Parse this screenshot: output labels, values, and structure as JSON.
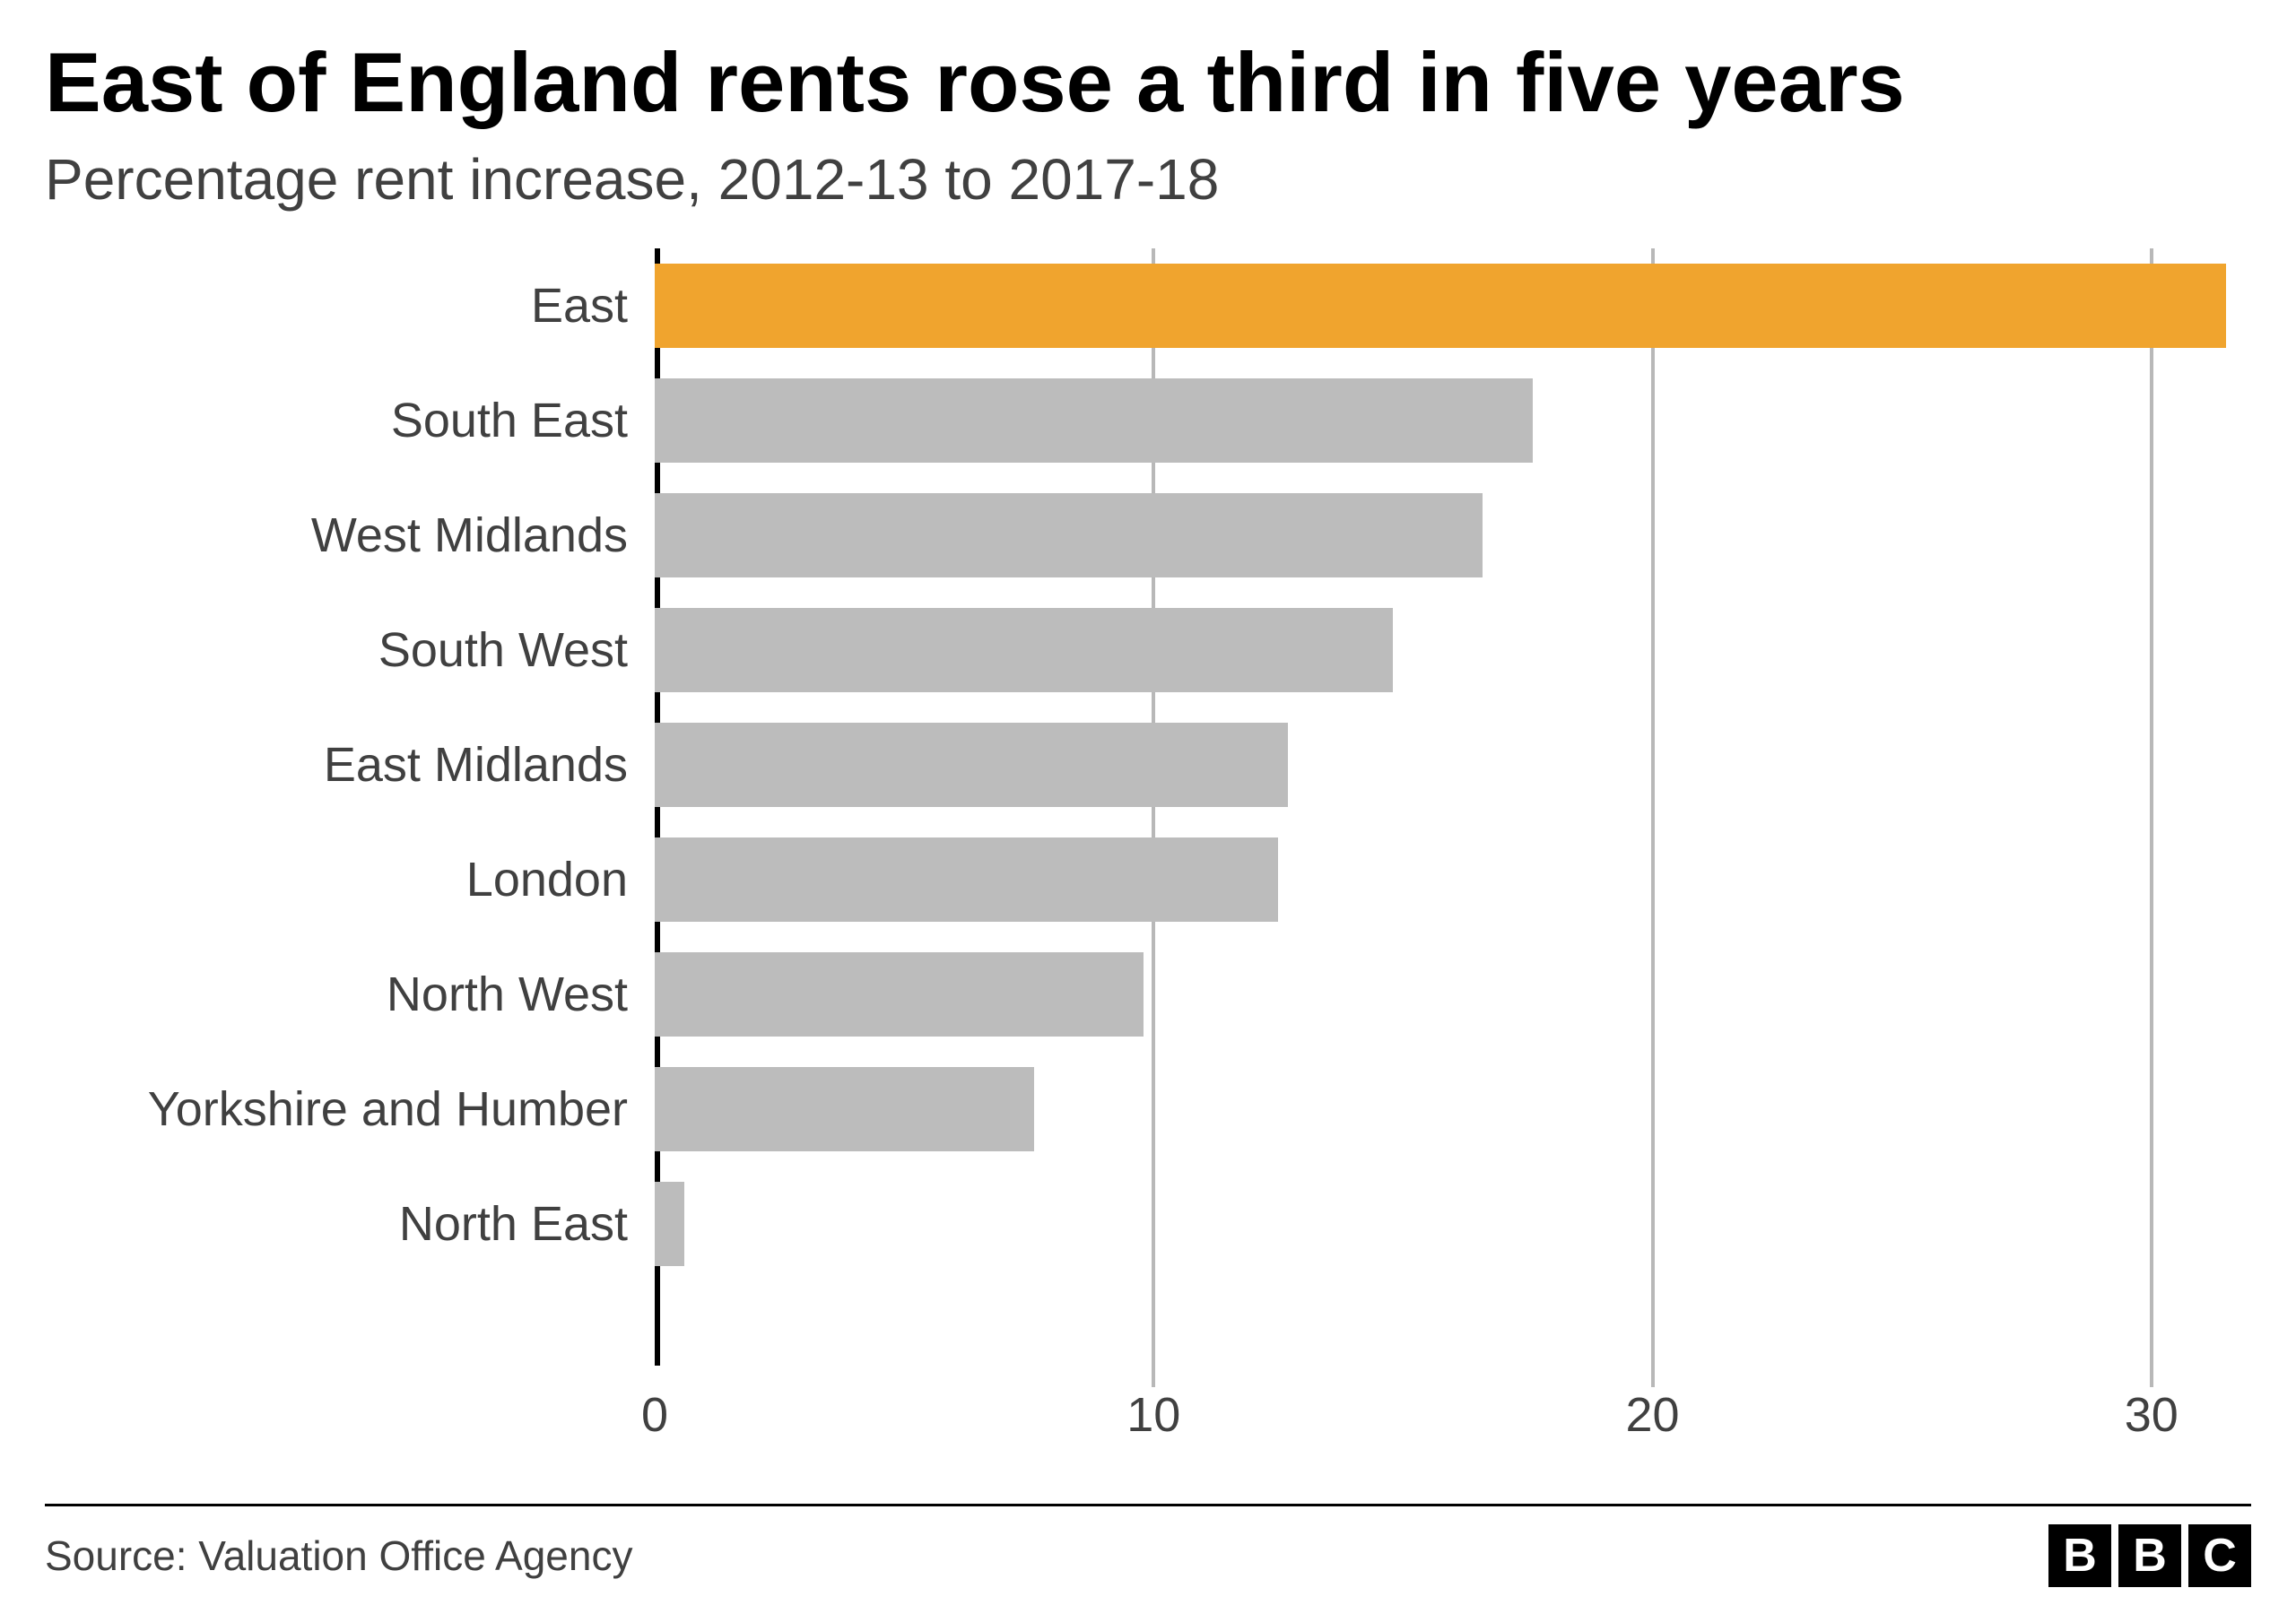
{
  "title": "East of England rents rose a third in five years",
  "subtitle": "Percentage rent increase, 2012-13 to 2017-18",
  "source": "Source: Valuation Office Agency",
  "brand": {
    "b1": "B",
    "b2": "B",
    "b3": "C"
  },
  "chart": {
    "type": "bar",
    "orientation": "horizontal",
    "xlim": [
      0,
      32
    ],
    "xticks": [
      0,
      10,
      20,
      30
    ],
    "background_color": "#ffffff",
    "bar_default_color": "#bcbcbc",
    "bar_highlight_color": "#f0a42e",
    "axis_line_color": "#000000",
    "gridline_color": "#b8b8b8",
    "tick_label_color": "#404040",
    "tick_label_fontsize": 54,
    "ylabel_fontsize": 54,
    "bar_height_ratio": 0.73,
    "categories": [
      "East",
      "South East",
      "West Midlands",
      "South West",
      "East Midlands",
      "London",
      "North West",
      "Yorkshire and Humber",
      "North East"
    ],
    "values": [
      31.5,
      17.6,
      16.6,
      14.8,
      12.7,
      12.5,
      9.8,
      7.6,
      0.6
    ],
    "highlight_index": 0
  },
  "title_fontsize": 94,
  "subtitle_fontsize": 64,
  "source_fontsize": 46,
  "text_color_title": "#000000",
  "text_color_body": "#404040"
}
